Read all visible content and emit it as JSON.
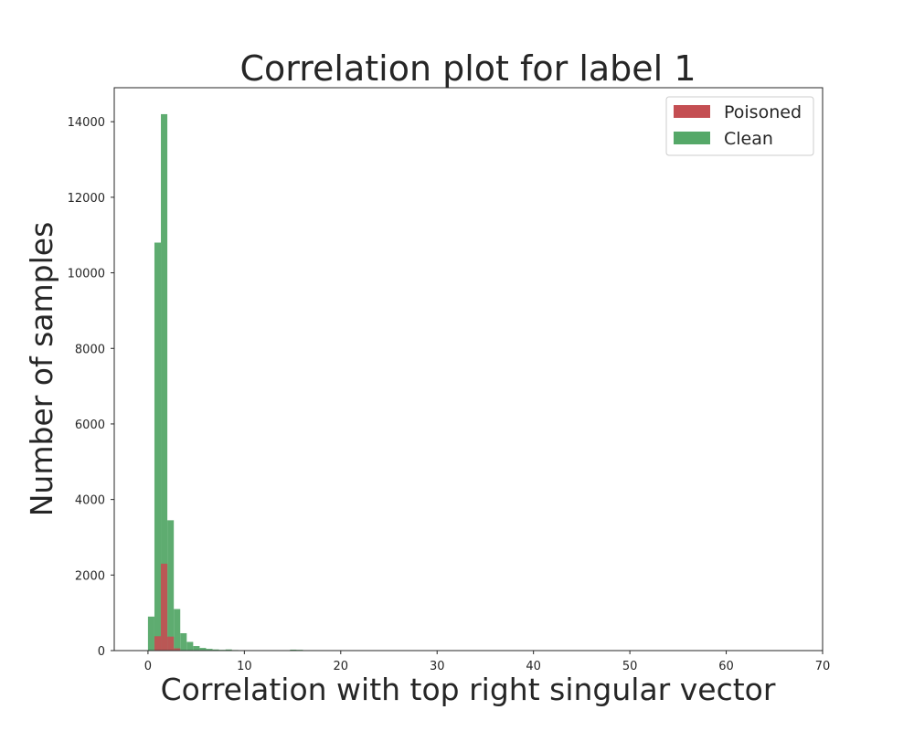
{
  "chart_data": {
    "type": "bar",
    "title": "Correlation plot for label 1",
    "xlabel": "Correlation with top right singular vector",
    "ylabel": "Number of samples",
    "xlim": [
      -3.5,
      70
    ],
    "ylim": [
      0,
      14900
    ],
    "xticks": [
      0,
      10,
      20,
      30,
      40,
      50,
      60,
      70
    ],
    "yticks": [
      0,
      2000,
      4000,
      6000,
      8000,
      10000,
      12000,
      14000
    ],
    "grid": false,
    "legend_position": "top-right",
    "bin_width": 0.67,
    "series": [
      {
        "name": "Clean",
        "color": "#55a868",
        "opacity": 0.95,
        "bin_starts": [
          0.0,
          0.67,
          1.34,
          2.01,
          2.68,
          3.35,
          4.02,
          4.69,
          5.36,
          6.03,
          6.7,
          7.37,
          8.04,
          8.71,
          9.38,
          10.05,
          10.72,
          11.39,
          12.06,
          12.73,
          13.4,
          14.07,
          14.74,
          15.41
        ],
        "values": [
          900,
          10800,
          14200,
          3450,
          1100,
          460,
          230,
          120,
          70,
          45,
          30,
          20,
          30,
          15,
          12,
          10,
          8,
          6,
          5,
          4,
          3,
          2,
          25,
          20
        ]
      },
      {
        "name": "Poisoned",
        "color": "#c44e52",
        "opacity": 0.9,
        "bin_starts": [
          0.67,
          1.34,
          2.01,
          2.68
        ],
        "values": [
          380,
          2300,
          370,
          60
        ]
      }
    ]
  }
}
